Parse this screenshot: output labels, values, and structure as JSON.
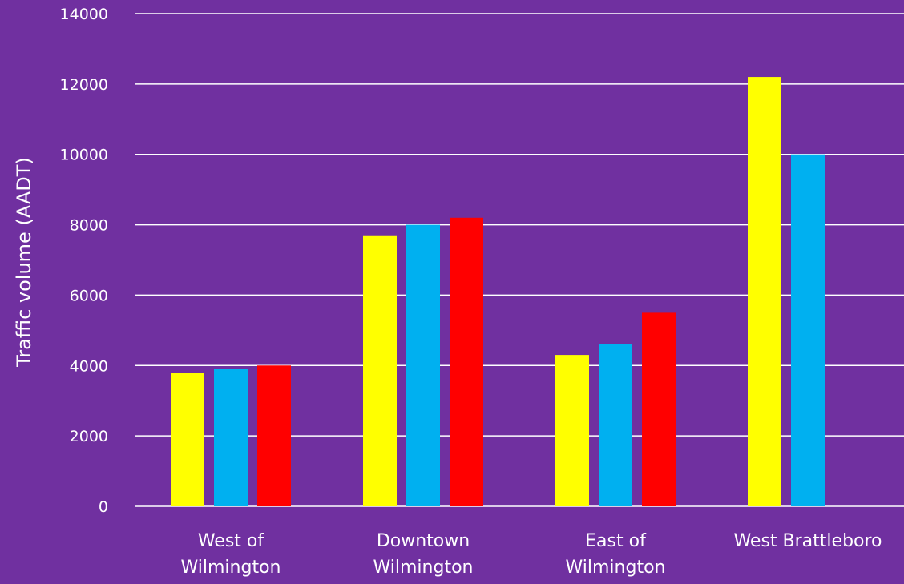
{
  "chart_data": {
    "type": "bar",
    "title": "",
    "xlabel": "",
    "ylabel": "Traffic volume (AADT)",
    "ylim": [
      0,
      14000
    ],
    "yticks": [
      0,
      2000,
      4000,
      6000,
      8000,
      10000,
      12000,
      14000
    ],
    "grid": true,
    "legend": "none",
    "categories": [
      [
        "West of",
        "Wilmington"
      ],
      [
        "Downtown",
        "Wilmington"
      ],
      [
        "East of",
        "Wilmington"
      ],
      [
        "West Brattleboro"
      ]
    ],
    "series": [
      {
        "color": "#ffff00",
        "values": [
          3800,
          7700,
          4300,
          12200
        ]
      },
      {
        "color": "#00b0f0",
        "values": [
          3900,
          8000,
          4600,
          10000
        ]
      },
      {
        "color": "#ff0000",
        "values": [
          4000,
          8200,
          5500,
          null
        ]
      }
    ]
  }
}
